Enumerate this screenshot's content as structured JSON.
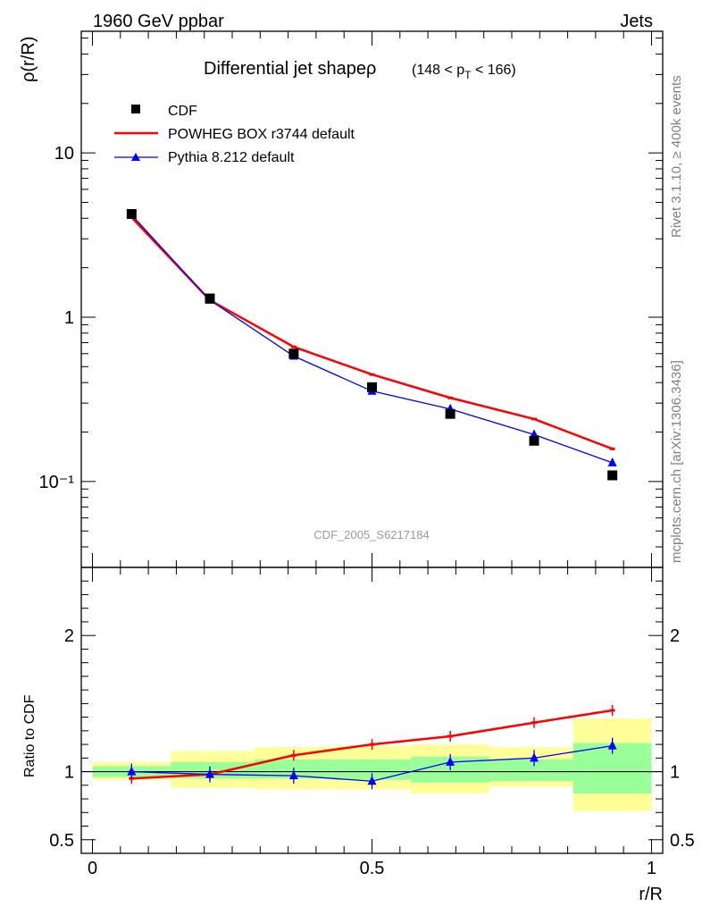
{
  "header": {
    "left": "1960 GeV ppbar",
    "right": "Jets"
  },
  "side_labels": {
    "rivet": "Rivet 3.1.10, ≥ 400k events",
    "mcplots": "mcplots.cern.ch [arXiv:1306.3436]"
  },
  "chart_data": [
    {
      "type": "scatter",
      "panel": "main",
      "title_main": "Differential jet shapeρ",
      "title_sub": "(148 < p",
      "title_sub_index": "T",
      "title_sub_end": " < 166)",
      "ylabel": "ρ(r/R)",
      "xlabel": "",
      "yscale": "log",
      "xlim": [
        -0.02,
        1.02
      ],
      "ylim": [
        0.03,
        55
      ],
      "y_tick_labels": [
        "10",
        "1",
        "10⁻¹"
      ],
      "watermark": "CDF_2005_S6217184",
      "legend_position": "top-left",
      "x": [
        0.07,
        0.21,
        0.36,
        0.5,
        0.64,
        0.79,
        0.93
      ],
      "series": [
        {
          "name": "CDF",
          "style": "square",
          "color": "#000000",
          "values": [
            4.25,
            1.3,
            0.6,
            0.375,
            0.258,
            0.177,
            0.109
          ]
        },
        {
          "name": "POWHEG BOX r3744 default",
          "style": "line",
          "color": "#ff0000",
          "values": [
            4.05,
            1.27,
            0.66,
            0.448,
            0.323,
            0.24,
            0.158
          ]
        },
        {
          "name": "Pythia 8.212 default",
          "style": "triangle-line",
          "color": "#0000ff",
          "values": [
            4.2,
            1.27,
            0.58,
            0.355,
            0.276,
            0.193,
            0.13
          ]
        }
      ]
    },
    {
      "type": "line",
      "panel": "ratio",
      "ylabel": "Ratio to CDF",
      "xlabel": "r/R",
      "ylim": [
        0.4,
        2.5
      ],
      "x_tick_labels": [
        "0",
        "0.5",
        "1"
      ],
      "y_tick_labels": [
        "2",
        "1",
        "0.5"
      ],
      "bands": [
        {
          "x": [
            0.0,
            0.14
          ],
          "inner": [
            0.96,
            1.04
          ],
          "outer": [
            0.94,
            1.07
          ]
        },
        {
          "x": [
            0.14,
            0.29
          ],
          "inner": [
            0.95,
            1.07
          ],
          "outer": [
            0.88,
            1.15
          ]
        },
        {
          "x": [
            0.29,
            0.43
          ],
          "inner": [
            0.95,
            1.09
          ],
          "outer": [
            0.87,
            1.18
          ]
        },
        {
          "x": [
            0.43,
            0.57
          ],
          "inner": [
            0.94,
            1.09
          ],
          "outer": [
            0.87,
            1.19
          ]
        },
        {
          "x": [
            0.57,
            0.71
          ],
          "inner": [
            0.92,
            1.11
          ],
          "outer": [
            0.84,
            1.2
          ]
        },
        {
          "x": [
            0.71,
            0.86
          ],
          "inner": [
            0.93,
            1.09
          ],
          "outer": [
            0.89,
            1.18
          ]
        },
        {
          "x": [
            0.86,
            1.0
          ],
          "inner": [
            0.84,
            1.21
          ],
          "outer": [
            0.71,
            1.39
          ]
        }
      ],
      "series": [
        {
          "name": "POWHEG BOX r3744 default",
          "color": "#ff0000",
          "values": [
            0.95,
            0.98,
            1.12,
            1.2,
            1.26,
            1.36,
            1.45
          ]
        },
        {
          "name": "Pythia 8.212 default",
          "color": "#0000ff",
          "values": [
            1.0,
            0.98,
            0.97,
            0.93,
            1.07,
            1.1,
            1.19
          ]
        }
      ]
    }
  ]
}
